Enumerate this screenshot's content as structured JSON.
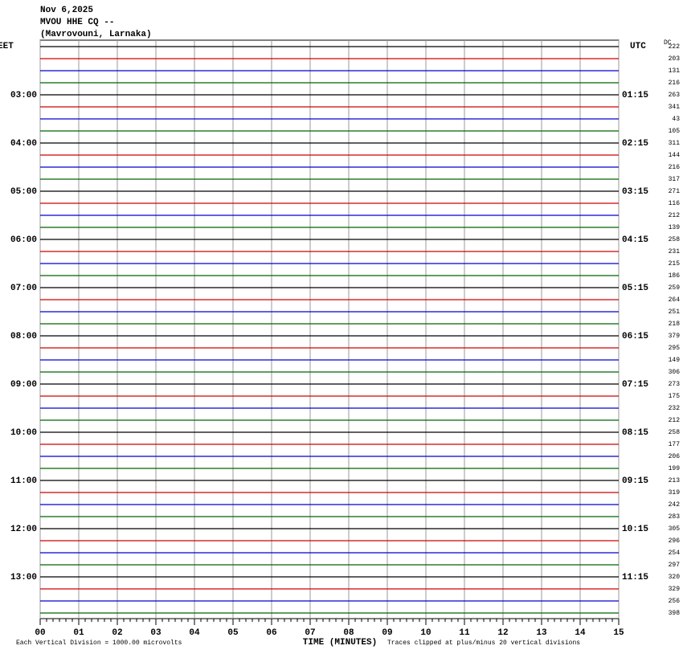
{
  "header": {
    "date": "Nov 6,2025",
    "station": "MVOU HHE CQ --",
    "location": "(Mavrovouni, Larnaka)"
  },
  "left_axis": {
    "title": "EET",
    "labels": [
      "03:00",
      "04:00",
      "05:00",
      "06:00",
      "07:00",
      "08:00",
      "09:00",
      "10:00",
      "11:00",
      "12:00",
      "13:00"
    ]
  },
  "right_axis": {
    "title": "UTC",
    "labels": [
      "01:15",
      "02:15",
      "03:15",
      "04:15",
      "05:15",
      "06:15",
      "07:15",
      "08:15",
      "09:15",
      "10:15",
      "11:15"
    ]
  },
  "dc": {
    "title": "DC",
    "values": [
      222,
      203,
      131,
      216,
      263,
      341,
      43,
      105,
      311,
      144,
      216,
      317,
      271,
      116,
      212,
      139,
      258,
      231,
      215,
      186,
      259,
      264,
      251,
      218,
      379,
      295,
      149,
      306,
      273,
      175,
      232,
      212,
      258,
      177,
      206,
      199,
      213,
      319,
      242,
      283,
      305,
      296,
      254,
      297,
      320,
      329,
      256,
      398
    ]
  },
  "x_axis": {
    "title": "TIME (MINUTES)",
    "ticks": [
      "00",
      "01",
      "02",
      "03",
      "04",
      "05",
      "06",
      "07",
      "08",
      "09",
      "10",
      "11",
      "12",
      "13",
      "14",
      "15"
    ]
  },
  "trace_colors": [
    "#000000",
    "#d00000",
    "#0000d0",
    "#006400"
  ],
  "footer": {
    "scale": "Each Vertical Division = 1000.00 microvolts",
    "clip": "Traces clipped at plus/minus 20 vertical divisions"
  }
}
